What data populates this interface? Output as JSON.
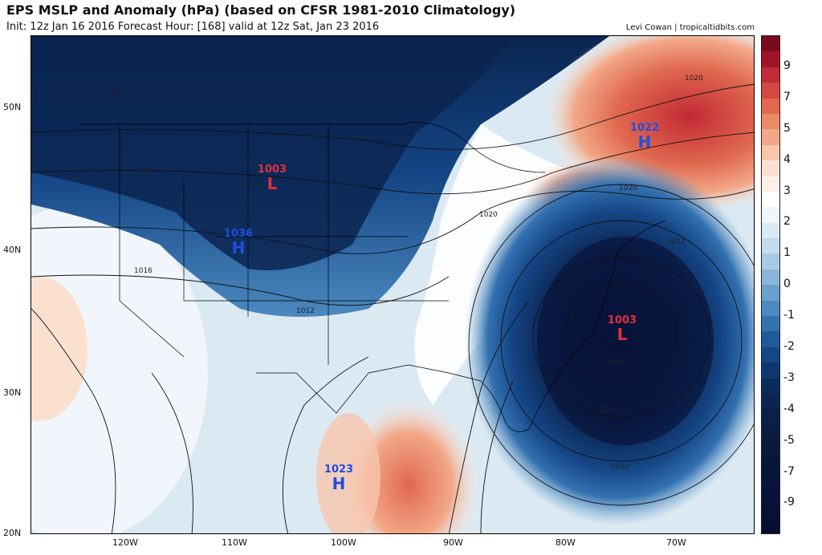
{
  "header": {
    "title": "EPS MSLP and Anomaly (hPa) (based on CFSR 1981-2010 Climatology)",
    "subtitle": "Init: 12z Jan 16 2016   Forecast Hour: [168]   valid at 12z Sat, Jan 23 2016",
    "credit": "Levi Cowan | tropicaltidbits.com"
  },
  "axes": {
    "lat_labels": [
      "50N",
      "40N",
      "30N",
      "20N"
    ],
    "lon_labels": [
      "120W",
      "110W",
      "100W",
      "90W",
      "80W",
      "70W"
    ]
  },
  "colorbar": {
    "labels": [
      "9",
      "7",
      "5",
      "4",
      "3",
      "2",
      "1",
      "0",
      "-1",
      "-2",
      "-3",
      "-4",
      "-5",
      "-7",
      "-9"
    ],
    "colors": [
      "#7a0b1f",
      "#a0142a",
      "#c22a35",
      "#d4493f",
      "#e0684f",
      "#eb8a67",
      "#f2a888",
      "#f7c6ac",
      "#fbe0d0",
      "#fdf0e8",
      "#ffffff",
      "#f0f6fb",
      "#dbe9f3",
      "#c3dbec",
      "#a8cbe3",
      "#8ab7d9",
      "#6aa1cc",
      "#4b89bf",
      "#3371b0",
      "#205a9c",
      "#154686",
      "#0e376f",
      "#0a2c5a",
      "#0a2550",
      "#0a2048",
      "#0a1c40",
      "#0a183a",
      "#08163a",
      "#08143a",
      "#08123a",
      "#081036",
      "#080e30"
    ]
  },
  "pressure_centers": [
    {
      "type": "L",
      "value": "1003",
      "kind": "low"
    },
    {
      "type": "H",
      "value": "1036",
      "kind": "high"
    },
    {
      "type": "H",
      "value": "1022",
      "kind": "high"
    },
    {
      "type": "L",
      "value": "1003",
      "kind": "low"
    },
    {
      "type": "H",
      "value": "1023",
      "kind": "high"
    }
  ],
  "isobar_labels": [
    "1008",
    "1012",
    "1024",
    "1016",
    "1012",
    "1020",
    "1020",
    "1020",
    "1012",
    "1004",
    "1008",
    "1012"
  ]
}
